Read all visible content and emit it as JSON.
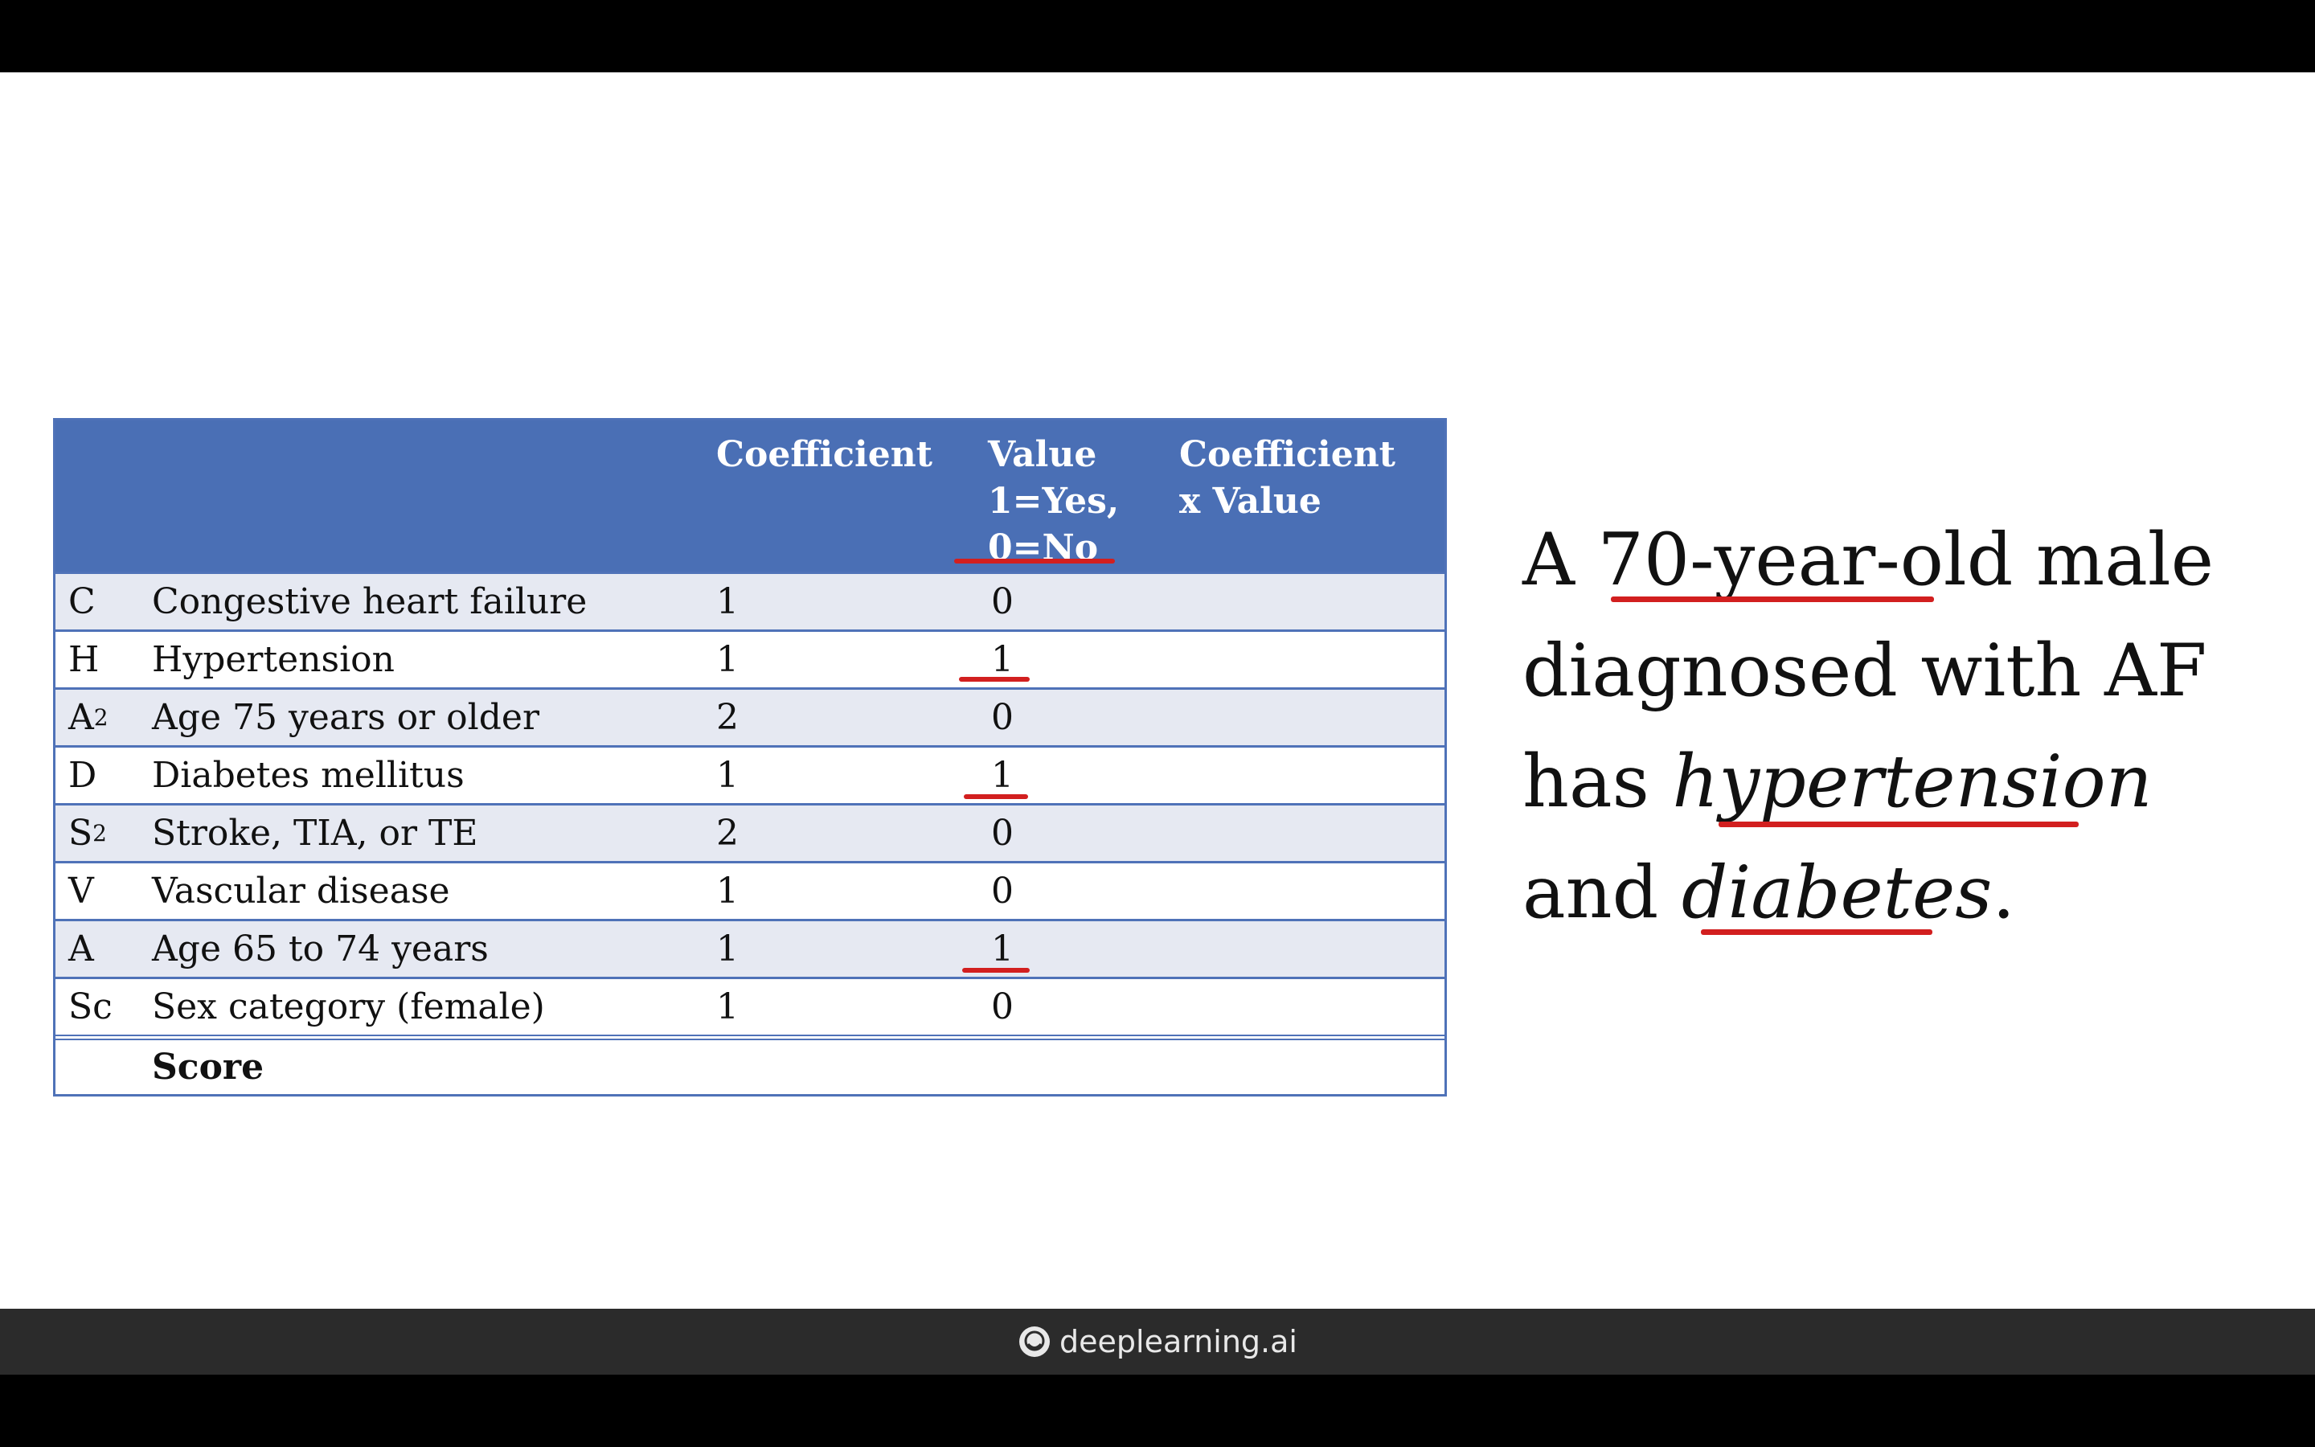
{
  "table": {
    "headers": {
      "coefficient": "Coefficient",
      "value": [
        "Value",
        "1=Yes,",
        "0=No"
      ],
      "coef_x_value": [
        "Coefficient",
        "x Value"
      ]
    },
    "rows": [
      {
        "abbr": "C",
        "abbr_sub": "",
        "label": "Congestive heart failure",
        "coefficient": "1",
        "value": "0"
      },
      {
        "abbr": "H",
        "abbr_sub": "",
        "label": "Hypertension",
        "coefficient": "1",
        "value": "1"
      },
      {
        "abbr": "A",
        "abbr_sub": "2",
        "label": "Age 75 years or older",
        "coefficient": "2",
        "value": "0"
      },
      {
        "abbr": "D",
        "abbr_sub": "",
        "label": "Diabetes mellitus",
        "coefficient": "1",
        "value": "1"
      },
      {
        "abbr": "S",
        "abbr_sub": "2",
        "label": "Stroke, TIA, or TE",
        "coefficient": "2",
        "value": "0"
      },
      {
        "abbr": "V",
        "abbr_sub": "",
        "label": "Vascular disease",
        "coefficient": "1",
        "value": "0"
      },
      {
        "abbr": "A",
        "abbr_sub": "",
        "label": "Age 65 to 74 years",
        "coefficient": "1",
        "value": "1"
      },
      {
        "abbr": "Sc",
        "abbr_sub": "",
        "label": "Sex category (female)",
        "coefficient": "1",
        "value": "0"
      }
    ],
    "score_label": "Score"
  },
  "case_text": {
    "line1_a": "A ",
    "line1_b": "70-year-old",
    "line1_c": " male",
    "line2": "diagnosed with AF",
    "line3_a": "has ",
    "line3_b": "hypertension",
    "line4_a": "and ",
    "line4_b": "diabetes",
    "line4_c": "."
  },
  "footer": {
    "brand": "deeplearning.ai"
  },
  "colors": {
    "header_blue": "#4a6fb5",
    "row_shade": "#e6e9f2",
    "annotation_red": "#d21f1f"
  }
}
